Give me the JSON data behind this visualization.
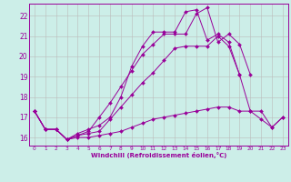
{
  "xlabel": "Windchill (Refroidissement éolien,°C)",
  "bg_color": "#cceee8",
  "line_color": "#990099",
  "grid_color": "#bbbbbb",
  "xlim": [
    -0.5,
    23.5
  ],
  "ylim": [
    15.6,
    22.6
  ],
  "xticks": [
    0,
    1,
    2,
    3,
    4,
    5,
    6,
    7,
    8,
    9,
    10,
    11,
    12,
    13,
    14,
    15,
    16,
    17,
    18,
    19,
    20,
    21,
    22,
    23
  ],
  "yticks": [
    16,
    17,
    18,
    19,
    20,
    21,
    22
  ],
  "series": [
    {
      "x": [
        0,
        1,
        2,
        3,
        4,
        5,
        6,
        7,
        8,
        9,
        10,
        11,
        12,
        13,
        14,
        15,
        16,
        17,
        18,
        19,
        20,
        21,
        22,
        23
      ],
      "y": [
        17.3,
        16.4,
        16.4,
        15.9,
        16.1,
        16.2,
        16.3,
        16.9,
        17.5,
        18.1,
        18.7,
        19.2,
        19.8,
        20.4,
        20.5,
        20.5,
        20.5,
        21.0,
        20.5,
        19.1,
        17.3,
        17.3,
        16.5,
        17.0
      ]
    },
    {
      "x": [
        0,
        1,
        2,
        3,
        4,
        5,
        6,
        7,
        8,
        9,
        10,
        11,
        12,
        13,
        14,
        15,
        16,
        17,
        18,
        19,
        20
      ],
      "y": [
        17.3,
        16.4,
        16.4,
        15.9,
        16.1,
        16.3,
        17.0,
        17.7,
        18.5,
        19.3,
        20.1,
        20.6,
        21.1,
        21.1,
        21.1,
        22.1,
        22.4,
        20.7,
        21.1,
        20.6,
        19.1
      ]
    },
    {
      "x": [
        0,
        1,
        2,
        3,
        4,
        5,
        6,
        7,
        8,
        9,
        10,
        11,
        12,
        13,
        14,
        15,
        16,
        17,
        18,
        19
      ],
      "y": [
        17.3,
        16.4,
        16.4,
        15.9,
        16.2,
        16.4,
        16.6,
        17.0,
        18.0,
        19.5,
        20.5,
        21.2,
        21.2,
        21.2,
        22.2,
        22.3,
        20.8,
        21.1,
        20.7,
        19.1
      ]
    },
    {
      "x": [
        0,
        1,
        2,
        3,
        4,
        5,
        6,
        7,
        8,
        9,
        10,
        11,
        12,
        13,
        14,
        15,
        16,
        17,
        18,
        19,
        20,
        21,
        22,
        23
      ],
      "y": [
        17.3,
        16.4,
        16.4,
        15.9,
        16.0,
        16.0,
        16.1,
        16.2,
        16.3,
        16.5,
        16.7,
        16.9,
        17.0,
        17.1,
        17.2,
        17.3,
        17.4,
        17.5,
        17.5,
        17.3,
        17.3,
        16.9,
        16.5,
        17.0
      ]
    }
  ]
}
